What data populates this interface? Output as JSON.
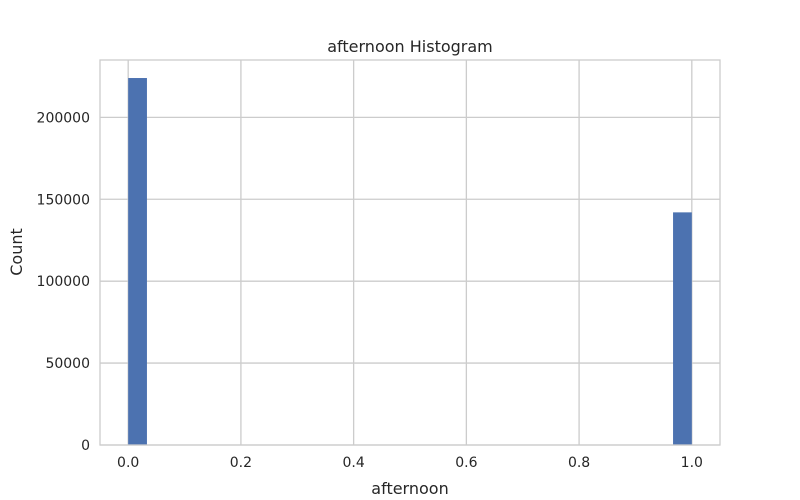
{
  "chart_data": {
    "type": "bar",
    "title": "afternoon Histogram",
    "xlabel": "afternoon",
    "ylabel": "Count",
    "xlim": [
      -0.05,
      1.05
    ],
    "ylim": [
      0,
      235000
    ],
    "xticks": [
      0.0,
      0.2,
      0.4,
      0.6,
      0.8,
      1.0
    ],
    "xtick_labels": [
      "0.0",
      "0.2",
      "0.4",
      "0.6",
      "0.8",
      "1.0"
    ],
    "yticks": [
      0,
      50000,
      100000,
      150000,
      200000
    ],
    "ytick_labels": [
      "0",
      "50000",
      "100000",
      "150000",
      "200000"
    ],
    "grid": true,
    "bar_color": "#4c72b0",
    "bins": [
      {
        "x0": 0.0,
        "x1": 0.0333,
        "count": 224000
      },
      {
        "x0": 0.9667,
        "x1": 1.0,
        "count": 142000
      }
    ]
  }
}
